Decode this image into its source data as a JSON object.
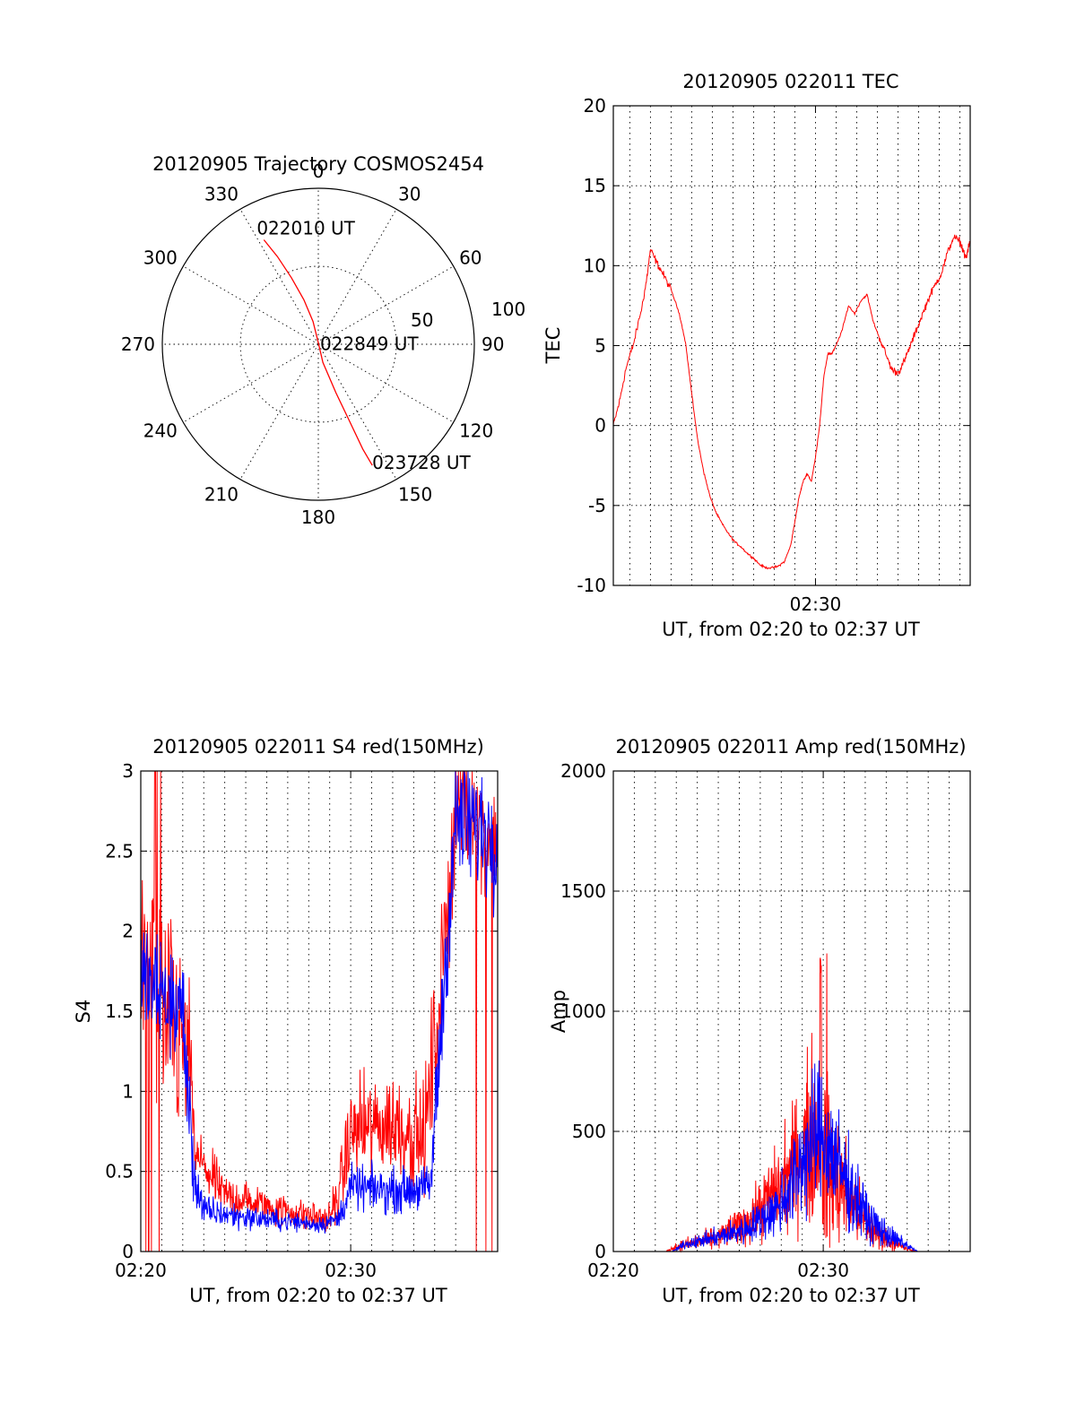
{
  "chart_data": [
    {
      "id": "trajectory",
      "type": "polar",
      "title": "20120905 Trajectory COSMOS2454",
      "angle_labels": [
        "0",
        "30",
        "60",
        "90",
        "120",
        "150",
        "180",
        "210",
        "240",
        "270",
        "300",
        "330"
      ],
      "radial_labels": [
        "50",
        "100"
      ],
      "rmax": 100,
      "series": [
        {
          "color": "#ff0000",
          "points_az_r": [
            [
              -27.5,
              75.5
            ],
            [
              -25,
              62
            ],
            [
              -22,
              46
            ],
            [
              -18,
              30
            ],
            [
              -13,
              15
            ],
            [
              0,
              1
            ],
            [
              166,
              12
            ],
            [
              160,
              33
            ],
            [
              158,
              52
            ],
            [
              157,
              73
            ],
            [
              156,
              85
            ]
          ]
        }
      ],
      "annotations": [
        {
          "text": "022010 UT",
          "az": -27.5,
          "r": 75.5
        },
        {
          "text": "022849 UT",
          "az": 0,
          "r": 1
        },
        {
          "text": "023728 UT",
          "az": 156,
          "r": 85
        }
      ]
    },
    {
      "id": "tec",
      "type": "line",
      "title": "20120905 022011 TEC",
      "xlabel": "UT, from 02:20 to 02:37 UT",
      "ylabel": "TEC",
      "xlim": [
        20.2,
        37.5
      ],
      "ylim": [
        -10,
        20
      ],
      "yticks": [
        "-10",
        "-5",
        "0",
        "5",
        "10",
        "15",
        "20"
      ],
      "xticks": [
        {
          "x": 30,
          "label": "02:30"
        }
      ],
      "series": [
        {
          "color": "#ff0000",
          "x": [
            20.2,
            20.5,
            20.8,
            21.2,
            21.6,
            21.8,
            22.0,
            22.3,
            22.6,
            23.0,
            23.4,
            23.7,
            24.0,
            24.3,
            24.6,
            24.9,
            25.2,
            25.5,
            25.8,
            26.1,
            26.4,
            26.7,
            27.0,
            27.3,
            27.6,
            27.9,
            28.2,
            28.5,
            28.8,
            29.0,
            29.2,
            29.4,
            29.6,
            29.8,
            30.0,
            30.2,
            30.4,
            30.6,
            30.8,
            31.0,
            31.3,
            31.6,
            31.9,
            32.2,
            32.5,
            32.8,
            33.1,
            33.4,
            33.7,
            34.0,
            34.3,
            34.6,
            34.9,
            35.2,
            35.5,
            35.8,
            36.1,
            36.4,
            36.7,
            37.0,
            37.3,
            37.5
          ],
          "y": [
            0,
            1.5,
            3.5,
            5.2,
            7.5,
            9.0,
            11.0,
            10.2,
            9.5,
            8.5,
            7.0,
            5.2,
            2.0,
            -1.0,
            -3.0,
            -4.5,
            -5.5,
            -6.2,
            -6.8,
            -7.3,
            -7.6,
            -8.0,
            -8.3,
            -8.7,
            -8.9,
            -8.9,
            -8.8,
            -8.5,
            -7.5,
            -6.0,
            -4.5,
            -3.5,
            -3.0,
            -3.5,
            -2.0,
            0.0,
            3.0,
            4.5,
            4.5,
            5.0,
            6.0,
            7.5,
            7.0,
            7.8,
            8.2,
            6.5,
            5.5,
            4.5,
            3.5,
            3.3,
            4.0,
            5.0,
            6.0,
            7.0,
            8.0,
            8.8,
            9.5,
            10.8,
            11.8,
            11.5,
            10.5,
            11.5
          ]
        }
      ]
    },
    {
      "id": "s4",
      "type": "line",
      "title": "20120905 022011 S4 red(150MHz)",
      "xlabel": "UT, from 02:20 to 02:37 UT",
      "ylabel": "S4",
      "xlim": [
        20,
        37
      ],
      "ylim": [
        0,
        3
      ],
      "yticks": [
        "0",
        "0.5",
        "1",
        "1.5",
        "2",
        "2.5",
        "3"
      ],
      "xticks": [
        {
          "x": 20,
          "label": "02:20"
        },
        {
          "x": 30,
          "label": "02:30"
        }
      ],
      "series": [
        {
          "color": "#ff0000",
          "segments": [
            [
              20.0,
              1.8,
              1.2
            ],
            [
              22.3,
              1.2,
              0.8
            ],
            [
              22.6,
              0.6,
              0.3
            ],
            [
              24.0,
              0.35,
              0.2
            ],
            [
              27.0,
              0.25,
              0.15
            ],
            [
              29.0,
              0.2,
              0.15
            ],
            [
              29.5,
              0.4,
              0.3
            ],
            [
              30.0,
              0.75,
              0.45
            ],
            [
              32.0,
              0.8,
              0.5
            ],
            [
              33.5,
              0.7,
              0.5
            ],
            [
              34.2,
              1.5,
              0.8
            ],
            [
              35.0,
              2.8,
              0.6
            ],
            [
              37.0,
              2.6,
              0.5
            ]
          ]
        },
        {
          "color": "#0000ff",
          "segments": [
            [
              20.0,
              1.7,
              0.5
            ],
            [
              21.0,
              1.6,
              0.5
            ],
            [
              22.0,
              1.5,
              0.6
            ],
            [
              22.5,
              0.5,
              0.3
            ],
            [
              23.0,
              0.25,
              0.15
            ],
            [
              26.0,
              0.2,
              0.1
            ],
            [
              28.5,
              0.17,
              0.08
            ],
            [
              29.4,
              0.2,
              0.1
            ],
            [
              30.0,
              0.4,
              0.2
            ],
            [
              32.0,
              0.38,
              0.2
            ],
            [
              33.8,
              0.4,
              0.2
            ],
            [
              34.2,
              1.2,
              0.6
            ],
            [
              35.0,
              2.7,
              0.6
            ],
            [
              37.0,
              2.6,
              0.6
            ]
          ]
        }
      ]
    },
    {
      "id": "amp",
      "type": "line",
      "title": "20120905 022011 Amp red(150MHz)",
      "xlabel": "UT, from 02:20 to 02:37 UT",
      "ylabel": "Amp",
      "xlim": [
        20,
        37
      ],
      "ylim": [
        0,
        2000
      ],
      "yticks": [
        "0",
        "500",
        "1000",
        "1500",
        "2000"
      ],
      "xticks": [
        {
          "x": 20,
          "label": "02:20"
        },
        {
          "x": 30,
          "label": "02:30"
        }
      ],
      "series": [
        {
          "color": "#ff0000",
          "segments": [
            [
              20.0,
              0,
              0
            ],
            [
              22.5,
              0,
              0
            ],
            [
              23.0,
              20,
              20
            ],
            [
              25.0,
              60,
              50
            ],
            [
              26.5,
              130,
              100
            ],
            [
              28.0,
              280,
              200
            ],
            [
              29.0,
              420,
              300
            ],
            [
              29.7,
              500,
              450
            ],
            [
              30.2,
              350,
              400
            ],
            [
              31.0,
              250,
              200
            ],
            [
              32.0,
              120,
              120
            ],
            [
              33.0,
              50,
              50
            ],
            [
              34.0,
              10,
              10
            ],
            [
              34.5,
              0,
              0
            ],
            [
              37.0,
              0,
              0
            ]
          ]
        },
        {
          "color": "#0000ff",
          "segments": [
            [
              20.0,
              0,
              0
            ],
            [
              22.8,
              0,
              0
            ],
            [
              23.4,
              30,
              20
            ],
            [
              25.0,
              60,
              40
            ],
            [
              26.5,
              100,
              70
            ],
            [
              27.8,
              180,
              120
            ],
            [
              28.5,
              280,
              200
            ],
            [
              29.2,
              420,
              260
            ],
            [
              29.8,
              500,
              300
            ],
            [
              30.5,
              400,
              250
            ],
            [
              31.3,
              260,
              180
            ],
            [
              32.2,
              130,
              100
            ],
            [
              33.2,
              60,
              50
            ],
            [
              34.0,
              25,
              20
            ],
            [
              34.5,
              0,
              0
            ],
            [
              37.0,
              0,
              0
            ]
          ]
        }
      ]
    }
  ]
}
